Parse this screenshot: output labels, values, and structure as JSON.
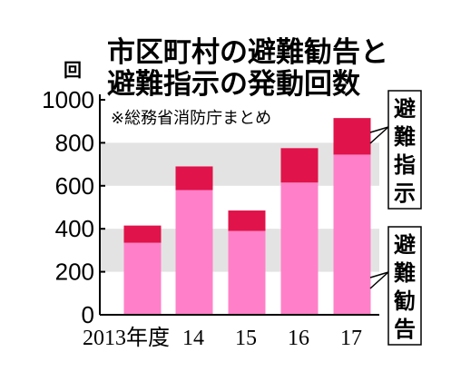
{
  "chart_data": {
    "type": "bar",
    "title_line1": "市区町村の避難勧告と",
    "title_line2": "避難指示の発動回数",
    "note": "※総務省消防庁まとめ",
    "ylabel": "回",
    "ylim": [
      0,
      1000
    ],
    "yticks": [
      0,
      200,
      400,
      600,
      800,
      1000
    ],
    "categories": [
      "2013年度",
      "14",
      "15",
      "16",
      "17"
    ],
    "stacked": true,
    "series": [
      {
        "name": "避難勧告",
        "values": [
          335,
          580,
          390,
          615,
          745
        ],
        "color": "#ff80c8"
      },
      {
        "name": "避難指示",
        "values": [
          80,
          110,
          95,
          160,
          170
        ],
        "color": "#e0134a"
      }
    ],
    "shaded_bands": [
      [
        200,
        400
      ],
      [
        600,
        800
      ]
    ],
    "band_color": "#e3e3e3",
    "legend_placement": "right"
  }
}
